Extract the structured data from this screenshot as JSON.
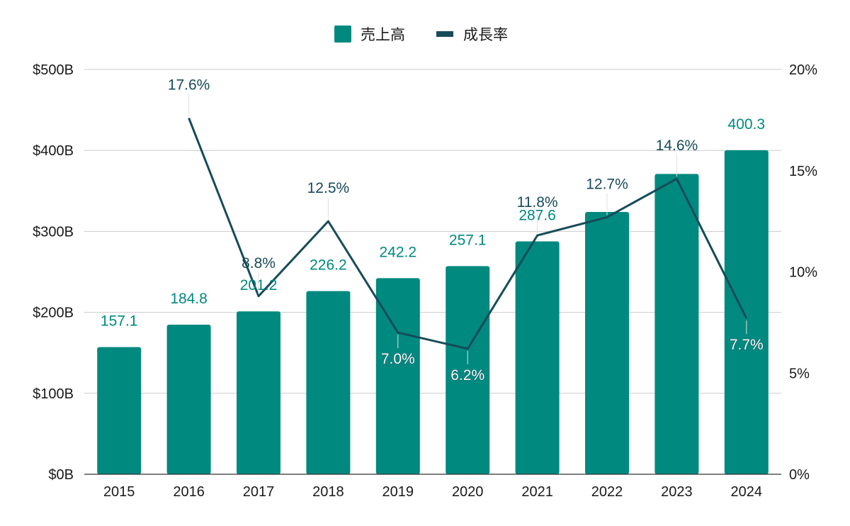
{
  "chart_data": {
    "type": "bar",
    "categories": [
      "2015",
      "2016",
      "2017",
      "2018",
      "2019",
      "2020",
      "2021",
      "2022",
      "2023",
      "2024"
    ],
    "series": [
      {
        "name": "売上高",
        "type": "bar",
        "axis": "left",
        "values": [
          157.1,
          184.8,
          201.2,
          226.2,
          242.2,
          257.1,
          287.6,
          324.0,
          371.0,
          400.3
        ],
        "labels": [
          "157.1",
          "184.8",
          "201.2",
          "226.2",
          "242.2",
          "257.1",
          "287.6",
          "",
          "",
          "400.3"
        ]
      },
      {
        "name": "成長率",
        "type": "line",
        "axis": "right",
        "values": [
          null,
          17.6,
          8.8,
          12.5,
          7.0,
          6.2,
          11.8,
          12.7,
          14.6,
          7.7
        ],
        "labels": [
          "",
          "17.6%",
          "8.8%",
          "12.5%",
          "7.0%",
          "6.2%",
          "11.8%",
          "12.7%",
          "14.6%",
          "7.7%"
        ]
      }
    ],
    "y_left": {
      "ylim": [
        0,
        500
      ],
      "ticks": [
        0,
        100,
        200,
        300,
        400,
        500
      ],
      "tick_labels": [
        "$0B",
        "$100B",
        "$200B",
        "$300B",
        "$400B",
        "$500B"
      ]
    },
    "y_right": {
      "ylim": [
        0,
        20
      ],
      "ticks": [
        0,
        5,
        10,
        15,
        20
      ],
      "tick_labels": [
        "0%",
        "5%",
        "10%",
        "15%",
        "20%"
      ]
    },
    "grid": true,
    "legend_position": "top-center",
    "colors": {
      "bar": "#00897f",
      "line": "#174b5a",
      "grid": "#cccccc"
    }
  }
}
